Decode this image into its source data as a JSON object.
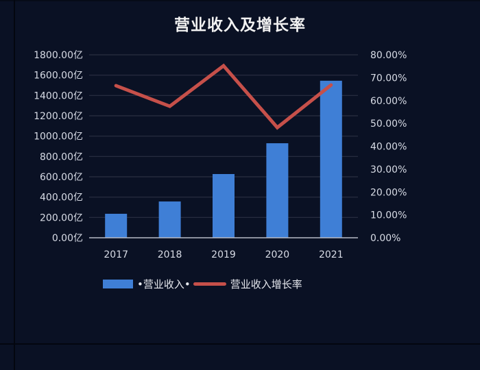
{
  "chart_data": {
    "type": "bar+line",
    "title": "营业收入及增长率",
    "categories": [
      "2017",
      "2018",
      "2019",
      "2020",
      "2021"
    ],
    "series": [
      {
        "name": "营业收入",
        "type": "bar",
        "axis": "left",
        "unit": "亿",
        "color": "#3f7fd6",
        "values": [
          236,
          357,
          627,
          930,
          1545
        ]
      },
      {
        "name": "营业收入增长率",
        "type": "line",
        "axis": "right",
        "unit": "%",
        "color": "#c6504a",
        "values": [
          66.5,
          57.5,
          75.2,
          48.2,
          66.8
        ]
      }
    ],
    "left_axis": {
      "ylim": [
        0,
        1800
      ],
      "step": 200,
      "tick_labels": [
        "0.00亿",
        "200.00亿",
        "400.00亿",
        "600.00亿",
        "800.00亿",
        "1000.00亿",
        "1200.00亿",
        "1400.00亿",
        "1600.00亿",
        "1800.00亿"
      ]
    },
    "right_axis": {
      "ylim": [
        0,
        80
      ],
      "step": 10,
      "tick_labels": [
        "0.00%",
        "10.00%",
        "20.00%",
        "30.00%",
        "40.00%",
        "50.00%",
        "60.00%",
        "70.00%",
        "80.00%"
      ]
    },
    "xlabel": "",
    "ylabel": "",
    "grid": true,
    "legend_position": "bottom"
  },
  "legend": {
    "bar_label": "•营业收入•",
    "line_label": "营业收入增长率"
  },
  "colors": {
    "background": "#0a1124",
    "bar": "#3f7fd6",
    "line": "#c6504a",
    "grid": "#2a3142",
    "text": "#d8dce6"
  }
}
